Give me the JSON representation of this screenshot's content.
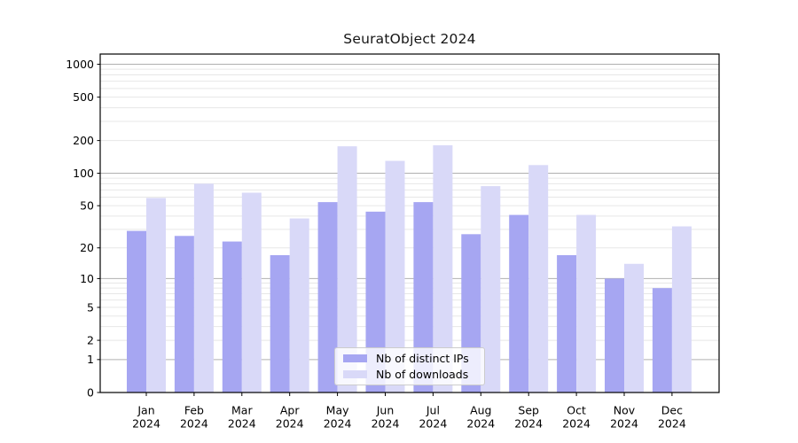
{
  "title": "SeuratObject 2024",
  "chart_data": {
    "type": "bar",
    "title": "SeuratObject 2024",
    "categories": [
      "Jan 2024",
      "Feb 2024",
      "Mar 2024",
      "Apr 2024",
      "May 2024",
      "Jun 2024",
      "Jul 2024",
      "Aug 2024",
      "Sep 2024",
      "Oct 2024",
      "Nov 2024",
      "Dec 2024"
    ],
    "months": [
      "Jan",
      "Feb",
      "Mar",
      "Apr",
      "May",
      "Jun",
      "Jul",
      "Aug",
      "Sep",
      "Oct",
      "Nov",
      "Dec"
    ],
    "year": "2024",
    "series": [
      {
        "name": "Nb of distinct IPs",
        "color": "#a6a6f2",
        "values": [
          29,
          26,
          23,
          17,
          54,
          44,
          54,
          27,
          41,
          17,
          10,
          8
        ]
      },
      {
        "name": "Nb of downloads",
        "color": "#d9d9f8",
        "values": [
          59,
          80,
          66,
          38,
          177,
          130,
          181,
          76,
          119,
          41,
          14,
          32
        ]
      }
    ],
    "yscale": "log1p",
    "yticks": [
      0,
      1,
      2,
      5,
      10,
      20,
      50,
      100,
      200,
      500,
      1000
    ],
    "ylim": [
      0,
      1240
    ],
    "grid": "both",
    "legend_position": "lower center",
    "colors": {
      "grid_major": "#b0b0b0",
      "grid_minor": "#e7e7e7",
      "spine": "#000000",
      "text": "#000000",
      "background": "#ffffff"
    }
  }
}
